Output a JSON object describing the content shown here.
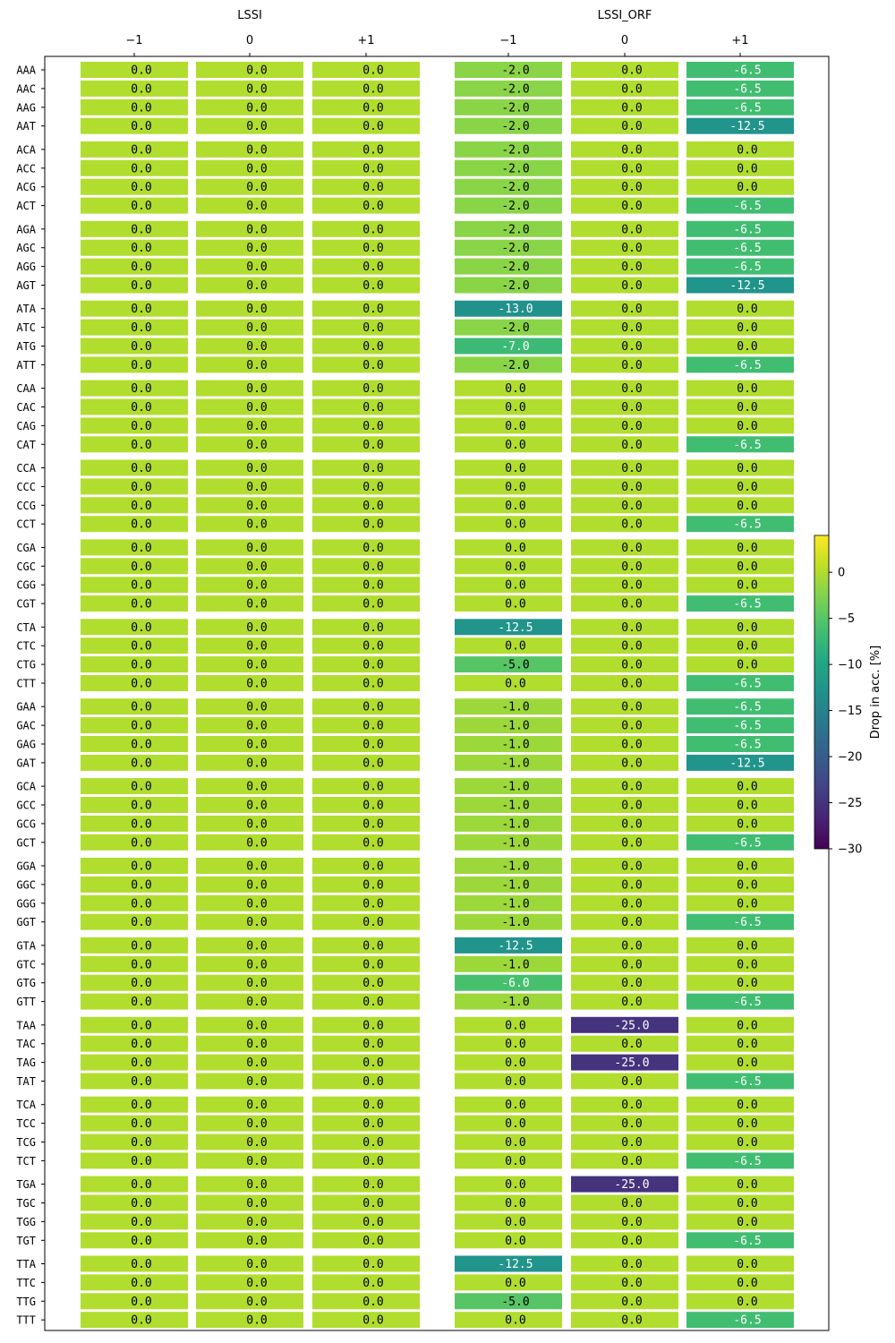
{
  "chart_data": {
    "type": "heatmap",
    "title": "",
    "panels": [
      {
        "name": "LSSI",
        "columns": [
          "−1",
          "0",
          "+1"
        ]
      },
      {
        "name": "LSSI_ORF",
        "columns": [
          "−1",
          "0",
          "+1"
        ]
      }
    ],
    "rows": [
      "AAA",
      "AAC",
      "AAG",
      "AAT",
      "ACA",
      "ACC",
      "ACG",
      "ACT",
      "AGA",
      "AGC",
      "AGG",
      "AGT",
      "ATA",
      "ATC",
      "ATG",
      "ATT",
      "CAA",
      "CAC",
      "CAG",
      "CAT",
      "CCA",
      "CCC",
      "CCG",
      "CCT",
      "CGA",
      "CGC",
      "CGG",
      "CGT",
      "CTA",
      "CTC",
      "CTG",
      "CTT",
      "GAA",
      "GAC",
      "GAG",
      "GAT",
      "GCA",
      "GCC",
      "GCG",
      "GCT",
      "GGA",
      "GGC",
      "GGG",
      "GGT",
      "GTA",
      "GTC",
      "GTG",
      "GTT",
      "TAA",
      "TAC",
      "TAG",
      "TAT",
      "TCA",
      "TCC",
      "TCG",
      "TCT",
      "TGA",
      "TGC",
      "TGG",
      "TGT",
      "TTA",
      "TTC",
      "TTG",
      "TTT"
    ],
    "row_group_size": 4,
    "lssi_values": [
      0.0,
      0.0,
      0.0
    ],
    "lssi_orf_values": [
      [
        -2.0,
        0.0,
        -6.5
      ],
      [
        -2.0,
        0.0,
        -6.5
      ],
      [
        -2.0,
        0.0,
        -6.5
      ],
      [
        -2.0,
        0.0,
        -12.5
      ],
      [
        -2.0,
        0.0,
        0.0
      ],
      [
        -2.0,
        0.0,
        0.0
      ],
      [
        -2.0,
        0.0,
        0.0
      ],
      [
        -2.0,
        0.0,
        -6.5
      ],
      [
        -2.0,
        0.0,
        -6.5
      ],
      [
        -2.0,
        0.0,
        -6.5
      ],
      [
        -2.0,
        0.0,
        -6.5
      ],
      [
        -2.0,
        0.0,
        -12.5
      ],
      [
        -13.0,
        0.0,
        0.0
      ],
      [
        -2.0,
        0.0,
        0.0
      ],
      [
        -7.0,
        0.0,
        0.0
      ],
      [
        -2.0,
        0.0,
        -6.5
      ],
      [
        0.0,
        0.0,
        0.0
      ],
      [
        0.0,
        0.0,
        0.0
      ],
      [
        0.0,
        0.0,
        0.0
      ],
      [
        0.0,
        0.0,
        -6.5
      ],
      [
        0.0,
        0.0,
        0.0
      ],
      [
        0.0,
        0.0,
        0.0
      ],
      [
        0.0,
        0.0,
        0.0
      ],
      [
        0.0,
        0.0,
        -6.5
      ],
      [
        0.0,
        0.0,
        0.0
      ],
      [
        0.0,
        0.0,
        0.0
      ],
      [
        0.0,
        0.0,
        0.0
      ],
      [
        0.0,
        0.0,
        -6.5
      ],
      [
        -12.5,
        0.0,
        0.0
      ],
      [
        0.0,
        0.0,
        0.0
      ],
      [
        -5.0,
        0.0,
        0.0
      ],
      [
        0.0,
        0.0,
        -6.5
      ],
      [
        -1.0,
        0.0,
        -6.5
      ],
      [
        -1.0,
        0.0,
        -6.5
      ],
      [
        -1.0,
        0.0,
        -6.5
      ],
      [
        -1.0,
        0.0,
        -12.5
      ],
      [
        -1.0,
        0.0,
        0.0
      ],
      [
        -1.0,
        0.0,
        0.0
      ],
      [
        -1.0,
        0.0,
        0.0
      ],
      [
        -1.0,
        0.0,
        -6.5
      ],
      [
        -1.0,
        0.0,
        0.0
      ],
      [
        -1.0,
        0.0,
        0.0
      ],
      [
        -1.0,
        0.0,
        0.0
      ],
      [
        -1.0,
        0.0,
        -6.5
      ],
      [
        -12.5,
        0.0,
        0.0
      ],
      [
        -1.0,
        0.0,
        0.0
      ],
      [
        -6.0,
        0.0,
        0.0
      ],
      [
        -1.0,
        0.0,
        -6.5
      ],
      [
        0.0,
        -25.0,
        0.0
      ],
      [
        0.0,
        0.0,
        0.0
      ],
      [
        0.0,
        -25.0,
        0.0
      ],
      [
        0.0,
        0.0,
        -6.5
      ],
      [
        0.0,
        0.0,
        0.0
      ],
      [
        0.0,
        0.0,
        0.0
      ],
      [
        0.0,
        0.0,
        0.0
      ],
      [
        0.0,
        0.0,
        -6.5
      ],
      [
        0.0,
        -25.0,
        0.0
      ],
      [
        0.0,
        0.0,
        0.0
      ],
      [
        0.0,
        0.0,
        0.0
      ],
      [
        0.0,
        0.0,
        -6.5
      ],
      [
        -12.5,
        0.0,
        0.0
      ],
      [
        0.0,
        0.0,
        0.0
      ],
      [
        -5.0,
        0.0,
        0.0
      ],
      [
        0.0,
        0.0,
        -6.5
      ]
    ],
    "value_format": "one decimal",
    "colormap": "viridis",
    "color_range": [
      -30,
      4
    ],
    "colorbar": {
      "label": "Drop in acc. [%]",
      "ticks": [
        0,
        -5,
        -10,
        -15,
        -20,
        -25,
        -30
      ],
      "tick_labels": [
        "0",
        "−5",
        "−10",
        "−15",
        "−20",
        "−25",
        "−30"
      ]
    },
    "legend": "none",
    "grid": false
  }
}
